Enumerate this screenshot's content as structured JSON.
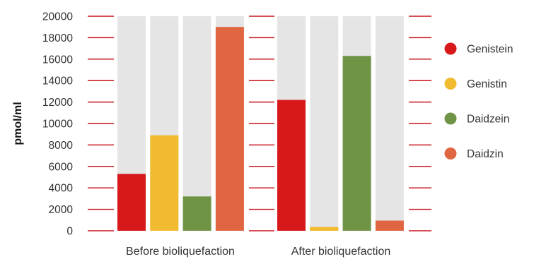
{
  "chart_data": {
    "type": "bar",
    "title": "",
    "ylabel": "pmol/ml",
    "xlabel": "",
    "ylim": [
      0,
      20000
    ],
    "yticks": [
      0,
      2000,
      4000,
      6000,
      8000,
      10000,
      12000,
      14000,
      16000,
      18000,
      20000
    ],
    "categories": [
      "Before bioliquefaction",
      "After bioliquefaction"
    ],
    "series": [
      {
        "name": "Genistein",
        "color": "#d7191c",
        "values": [
          5300,
          12200
        ]
      },
      {
        "name": "Genistin",
        "color": "#f0bb2f",
        "values": [
          8900,
          350
        ]
      },
      {
        "name": "Daidzein",
        "color": "#6f9446",
        "values": [
          3200,
          16300
        ]
      },
      {
        "name": "Daidzin",
        "color": "#e06642",
        "values": [
          19000,
          950
        ]
      }
    ],
    "background_bar_color": "#e5e5e5",
    "tick_mark_color": "#c8141e",
    "grid": false,
    "legend_position": "right"
  }
}
